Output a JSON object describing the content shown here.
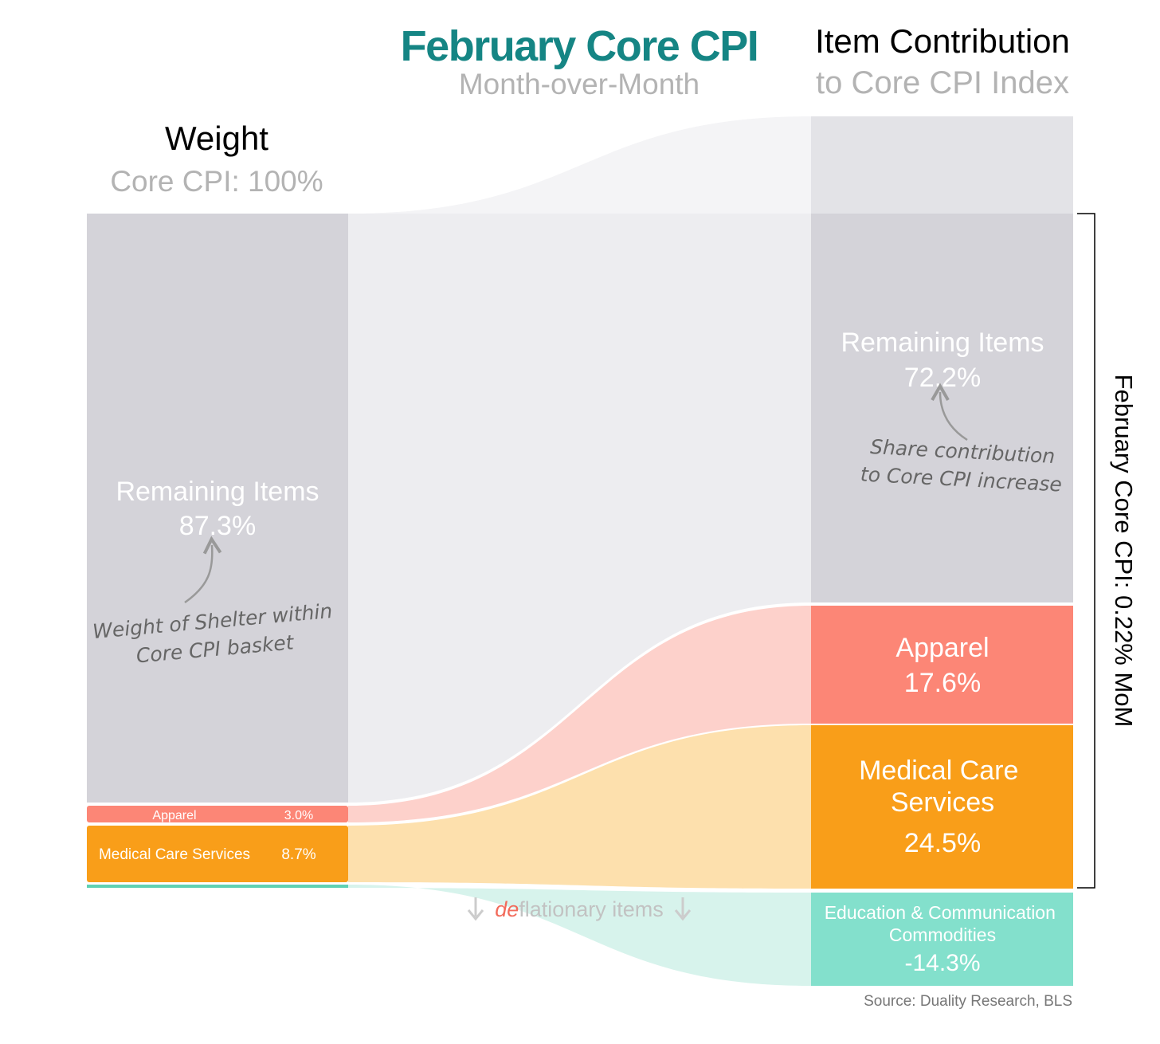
{
  "chart_data": {
    "type": "sankey",
    "title": "February Core CPI",
    "subtitle": "Month-over-Month",
    "left_column": {
      "title": "Weight",
      "subtitle": "Core CPI: 100%",
      "nodes": [
        {
          "label": "Remaining Items",
          "value_label": "87.3%",
          "value": 87.3,
          "color": "#d4d3d9"
        },
        {
          "label": "Apparel",
          "value_label": "3.0%",
          "value": 3.0,
          "color": "#fc8676"
        },
        {
          "label": "Medical Care Services",
          "value_label": "8.7%",
          "value": 8.7,
          "color": "#f99e19"
        },
        {
          "label": "",
          "value_label": "",
          "value": 1.0,
          "color": "#5fd1b3"
        }
      ]
    },
    "right_column": {
      "title": "Item Contribution",
      "subtitle": "to Core CPI Index",
      "nodes": [
        {
          "label": "Remaining Items",
          "value_label": "72.2%",
          "value": 72.2,
          "color": "#d4d3d9"
        },
        {
          "label": "Apparel",
          "value_label": "17.6%",
          "value": 17.6,
          "color": "#fc8676"
        },
        {
          "label": "Medical Care Services",
          "value_label": "24.5%",
          "value": 24.5,
          "color": "#f99e19"
        },
        {
          "label": "Education & Communication Commodities",
          "value_label": "-14.3%",
          "value": -14.3,
          "color": "#83e0cc"
        }
      ]
    },
    "annotations": {
      "left_note": [
        "Weight of Shelter within",
        "Core CPI basket"
      ],
      "right_note": [
        "Share contribution",
        "to Core CPI increase"
      ],
      "deflationary_prefix": "de",
      "deflationary_suffix": "flationary items",
      "bracket_label": "February Core CPI:  0.22% MoM",
      "source": "Source: Duality Research, BLS"
    }
  }
}
